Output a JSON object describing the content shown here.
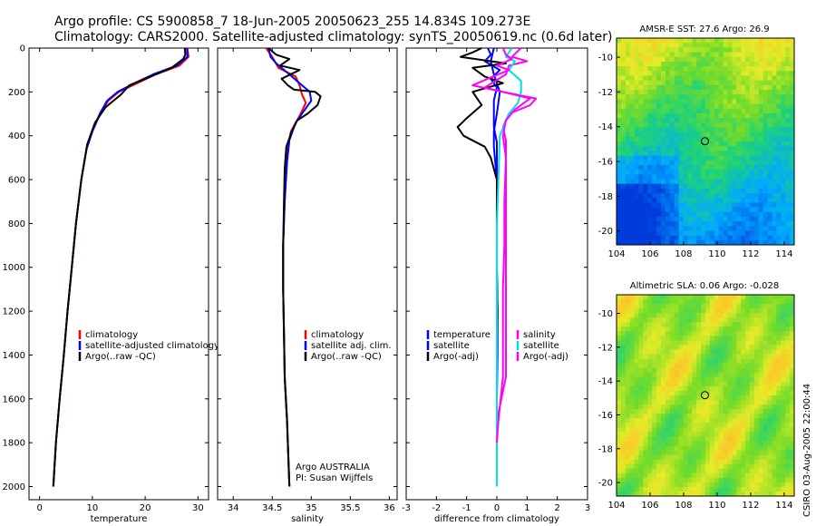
{
  "header": {
    "line1": "Argo profile: CS 5900858_7 18-Jun-2005 20050623_255 14.834S 109.273E",
    "line2": "Climatology: CARS2000. Satellite-adjusted climatology: synTS_20050619.nc (0.6d later)"
  },
  "colors": {
    "climatology": "#ff0000",
    "satellite": "#0000ff",
    "argo": "#000000",
    "salinity": "#ff00ff",
    "salinity_satellite": "#00e0e0"
  },
  "chart_data": [
    {
      "type": "line",
      "id": "temperature",
      "xlabel": "temperature",
      "ylabel": "",
      "xlim": [
        -2,
        32
      ],
      "ylim": [
        2060,
        0
      ],
      "xticks": [
        0,
        10,
        20,
        30
      ],
      "yticks": [
        0,
        200,
        400,
        600,
        800,
        1000,
        1200,
        1400,
        1600,
        1800,
        2000
      ],
      "legend": [
        "climatology",
        "satellite-adjusted climatology",
        "Argo(..raw -QC)"
      ],
      "series": [
        {
          "name": "climatology",
          "color": "#ff0000",
          "points": [
            [
              28.0,
              0
            ],
            [
              28.2,
              40
            ],
            [
              26.5,
              80
            ],
            [
              22,
              120
            ],
            [
              18.5,
              160
            ],
            [
              15,
              200
            ],
            [
              13,
              240
            ],
            [
              11.5,
              300
            ],
            [
              10,
              380
            ],
            [
              8.9,
              460
            ],
            [
              7.9,
              600
            ],
            [
              6.9,
              800
            ],
            [
              6.1,
              1000
            ],
            [
              5.3,
              1200
            ],
            [
              4.6,
              1400
            ],
            [
              3.8,
              1600
            ],
            [
              3.1,
              1800
            ],
            [
              2.6,
              2000
            ]
          ]
        },
        {
          "name": "satellite-adjusted climatology",
          "color": "#0000ff",
          "points": [
            [
              27.9,
              0
            ],
            [
              28.0,
              40
            ],
            [
              26,
              80
            ],
            [
              21.5,
              120
            ],
            [
              18,
              160
            ],
            [
              14.8,
              200
            ],
            [
              12.8,
              240
            ],
            [
              11.4,
              300
            ],
            [
              10,
              380
            ],
            [
              8.9,
              460
            ],
            [
              7.9,
              600
            ],
            [
              6.9,
              800
            ],
            [
              6.1,
              1000
            ],
            [
              5.3,
              1200
            ],
            [
              4.6,
              1400
            ],
            [
              3.8,
              1600
            ],
            [
              3.1,
              1800
            ],
            [
              2.6,
              2000
            ]
          ]
        },
        {
          "name": "Argo(..raw -QC)",
          "color": "#000000",
          "points": [
            [
              27.5,
              0
            ],
            [
              27.6,
              30
            ],
            [
              27.2,
              50
            ],
            [
              25,
              90
            ],
            [
              21,
              130
            ],
            [
              17,
              170
            ],
            [
              15.5,
              210
            ],
            [
              12.5,
              270
            ],
            [
              10.5,
              340
            ],
            [
              9,
              440
            ],
            [
              7.9,
              600
            ],
            [
              6.9,
              800
            ],
            [
              6.1,
              1000
            ],
            [
              5.3,
              1200
            ],
            [
              4.6,
              1400
            ],
            [
              3.8,
              1600
            ],
            [
              3.1,
              1800
            ],
            [
              2.6,
              2000
            ]
          ]
        }
      ]
    },
    {
      "type": "line",
      "id": "salinity",
      "xlabel": "salinity",
      "xlim": [
        33.8,
        36.1
      ],
      "ylim": [
        2060,
        0
      ],
      "xticks": [
        34,
        34.5,
        35,
        35.5,
        36
      ],
      "yticks": [
        0,
        200,
        400,
        600,
        800,
        1000,
        1200,
        1400,
        1600,
        1800,
        2000
      ],
      "legend": [
        "climatology",
        "satellite adj. clim.",
        "Argo(..raw -QC)"
      ],
      "series": [
        {
          "name": "climatology",
          "color": "#ff0000",
          "points": [
            [
              34.42,
              0
            ],
            [
              34.5,
              40
            ],
            [
              34.58,
              90
            ],
            [
              34.8,
              130
            ],
            [
              34.85,
              170
            ],
            [
              34.88,
              210
            ],
            [
              34.93,
              250
            ],
            [
              34.85,
              310
            ],
            [
              34.74,
              380
            ],
            [
              34.7,
              450
            ],
            [
              34.68,
              550
            ],
            [
              34.66,
              700
            ],
            [
              34.64,
              900
            ],
            [
              34.64,
              1100
            ],
            [
              34.65,
              1300
            ],
            [
              34.66,
              1500
            ],
            [
              34.69,
              1700
            ],
            [
              34.72,
              2000
            ]
          ]
        },
        {
          "name": "satellite adj. clim.",
          "color": "#0000ff",
          "points": [
            [
              34.45,
              0
            ],
            [
              34.48,
              40
            ],
            [
              34.55,
              70
            ],
            [
              34.72,
              120
            ],
            [
              34.85,
              160
            ],
            [
              34.98,
              200
            ],
            [
              35.0,
              240
            ],
            [
              34.9,
              290
            ],
            [
              34.8,
              340
            ],
            [
              34.72,
              420
            ],
            [
              34.69,
              520
            ],
            [
              34.66,
              700
            ],
            [
              34.64,
              900
            ],
            [
              34.64,
              1100
            ],
            [
              34.65,
              1300
            ],
            [
              34.66,
              1500
            ],
            [
              34.69,
              1700
            ],
            [
              34.72,
              2000
            ]
          ]
        },
        {
          "name": "Argo(..raw -QC)",
          "color": "#000000",
          "points": [
            [
              34.45,
              0
            ],
            [
              34.55,
              30
            ],
            [
              34.72,
              50
            ],
            [
              34.6,
              80
            ],
            [
              34.85,
              100
            ],
            [
              34.62,
              140
            ],
            [
              34.7,
              170
            ],
            [
              34.78,
              190
            ],
            [
              35.05,
              200
            ],
            [
              35.12,
              220
            ],
            [
              35.08,
              260
            ],
            [
              34.95,
              300
            ],
            [
              34.82,
              330
            ],
            [
              34.75,
              380
            ],
            [
              34.68,
              450
            ],
            [
              34.66,
              550
            ],
            [
              34.65,
              700
            ],
            [
              34.64,
              900
            ],
            [
              34.64,
              1100
            ],
            [
              34.65,
              1300
            ],
            [
              34.66,
              1500
            ],
            [
              34.69,
              1700
            ],
            [
              34.72,
              2000
            ]
          ]
        }
      ],
      "annotations": [
        "Argo AUSTRALIA",
        "PI: Susan Wijffels"
      ]
    },
    {
      "type": "line",
      "id": "difference",
      "xlabel": "difference from climatology",
      "xlim": [
        -3,
        3
      ],
      "ylim": [
        2060,
        0
      ],
      "xticks": [
        -3,
        -2,
        -1,
        0,
        1,
        2,
        3
      ],
      "yticks": [
        0,
        200,
        400,
        600,
        800,
        1000,
        1200,
        1400,
        1600,
        1800,
        2000
      ],
      "legend": [
        "temperature",
        "satellite",
        "Argo(-adj)",
        "salinity",
        "satellite",
        "Argo(-adj)"
      ],
      "series": [
        {
          "name": "temperature",
          "color": "#0000ff",
          "points": [
            [
              -0.1,
              0
            ],
            [
              -0.2,
              60
            ],
            [
              -0.1,
              120
            ],
            [
              0.1,
              200
            ],
            [
              0.0,
              300
            ],
            [
              -0.1,
              380
            ],
            [
              -0.1,
              450
            ],
            [
              0.0,
              600
            ],
            [
              0.0,
              800
            ],
            [
              0.0,
              1000
            ],
            [
              0.02,
              1200
            ],
            [
              0.02,
              1400
            ],
            [
              0.0,
              1600
            ],
            [
              0.0,
              1800
            ]
          ]
        },
        {
          "name": "satellite",
          "color": "#0000ff",
          "points": [
            [
              -0.3,
              0
            ],
            [
              -0.2,
              30
            ],
            [
              -0.4,
              60
            ],
            [
              0.1,
              100
            ],
            [
              -0.2,
              140
            ],
            [
              0.0,
              180
            ],
            [
              -0.1,
              240
            ],
            [
              -0.1,
              300
            ],
            [
              -0.1,
              360
            ],
            [
              0.0,
              430
            ],
            [
              0.0,
              600
            ],
            [
              0.0,
              800
            ],
            [
              0.0,
              1000
            ],
            [
              0.0,
              1200
            ],
            [
              0.0,
              1400
            ],
            [
              0.0,
              1600
            ],
            [
              0.0,
              1800
            ]
          ]
        },
        {
          "name": "Argo(-adj)",
          "color": "#000000",
          "points": [
            [
              -0.5,
              0
            ],
            [
              -0.8,
              20
            ],
            [
              -1.2,
              40
            ],
            [
              0.3,
              70
            ],
            [
              -0.8,
              90
            ],
            [
              -0.4,
              130
            ],
            [
              0.2,
              160
            ],
            [
              -0.8,
              200
            ],
            [
              -0.5,
              260
            ],
            [
              -1.0,
              320
            ],
            [
              -1.3,
              360
            ],
            [
              -1.1,
              400
            ],
            [
              -0.4,
              450
            ],
            [
              -0.2,
              500
            ],
            [
              0.0,
              600
            ],
            [
              0.0,
              800
            ],
            [
              0.0,
              1000
            ],
            [
              0.02,
              1200
            ],
            [
              0.0,
              1400
            ],
            [
              0.0,
              1600
            ],
            [
              0.0,
              1800
            ]
          ]
        },
        {
          "name": "salinity",
          "color": "#ff00ff",
          "points": [
            [
              0.8,
              0
            ],
            [
              0.5,
              40
            ],
            [
              1.0,
              60
            ],
            [
              0.4,
              80
            ],
            [
              0.3,
              120
            ],
            [
              -0.4,
              180
            ],
            [
              0.2,
              200
            ],
            [
              1.3,
              230
            ],
            [
              1.1,
              260
            ],
            [
              0.4,
              300
            ],
            [
              0.2,
              360
            ],
            [
              0.3,
              420
            ],
            [
              0.3,
              520
            ],
            [
              0.3,
              700
            ],
            [
              0.3,
              900
            ],
            [
              0.3,
              1100
            ],
            [
              0.3,
              1300
            ],
            [
              0.3,
              1500
            ],
            [
              0.0,
              1700
            ],
            [
              0.0,
              1800
            ]
          ]
        },
        {
          "name": "satellite",
          "color": "#00e0e0",
          "points": [
            [
              0.5,
              0
            ],
            [
              0.3,
              40
            ],
            [
              0.6,
              60
            ],
            [
              0.4,
              100
            ],
            [
              0.8,
              150
            ],
            [
              0.8,
              200
            ],
            [
              0.7,
              250
            ],
            [
              0.4,
              300
            ],
            [
              0.1,
              400
            ],
            [
              0.05,
              600
            ],
            [
              0.0,
              800
            ],
            [
              0.0,
              1000
            ],
            [
              0.0,
              1200
            ],
            [
              0.0,
              1400
            ],
            [
              0.0,
              1600
            ],
            [
              0.0,
              1800
            ],
            [
              0.0,
              2000
            ]
          ]
        },
        {
          "name": "Argo(-adj)",
          "color": "#ff00ff",
          "points": [
            [
              0.2,
              0
            ],
            [
              0.3,
              30
            ],
            [
              0.5,
              50
            ],
            [
              0.0,
              80
            ],
            [
              0.4,
              100
            ],
            [
              -0.3,
              140
            ],
            [
              -0.8,
              170
            ],
            [
              0.2,
              200
            ],
            [
              1.1,
              230
            ],
            [
              0.6,
              280
            ],
            [
              0.3,
              330
            ],
            [
              0.2,
              400
            ],
            [
              0.3,
              500
            ],
            [
              0.25,
              700
            ],
            [
              0.25,
              900
            ],
            [
              0.2,
              1100
            ],
            [
              0.2,
              1300
            ],
            [
              0.2,
              1500
            ],
            [
              0.05,
              1700
            ],
            [
              0.0,
              1800
            ]
          ]
        }
      ]
    }
  ],
  "maps": [
    {
      "id": "sst",
      "title": "AMSR-E SST: 27.6 Argo: 26.9",
      "xticks": [
        "104",
        "106",
        "108",
        "110",
        "112",
        "114"
      ],
      "yticks": [
        "-10",
        "-12",
        "-14",
        "-16",
        "-18",
        "-20"
      ],
      "marker": {
        "lon": 109.273,
        "lat": -14.834
      }
    },
    {
      "id": "sla",
      "title": "Altimetric SLA: 0.06 Argo: -0.028",
      "xticks": [
        "104",
        "106",
        "108",
        "110",
        "112",
        "114"
      ],
      "yticks": [
        "-10",
        "-12",
        "-14",
        "-16",
        "-18",
        "-20"
      ],
      "marker": {
        "lon": 109.273,
        "lat": -14.834
      }
    }
  ],
  "credit": "CSIRO 03-Aug-2005 22:00:44"
}
